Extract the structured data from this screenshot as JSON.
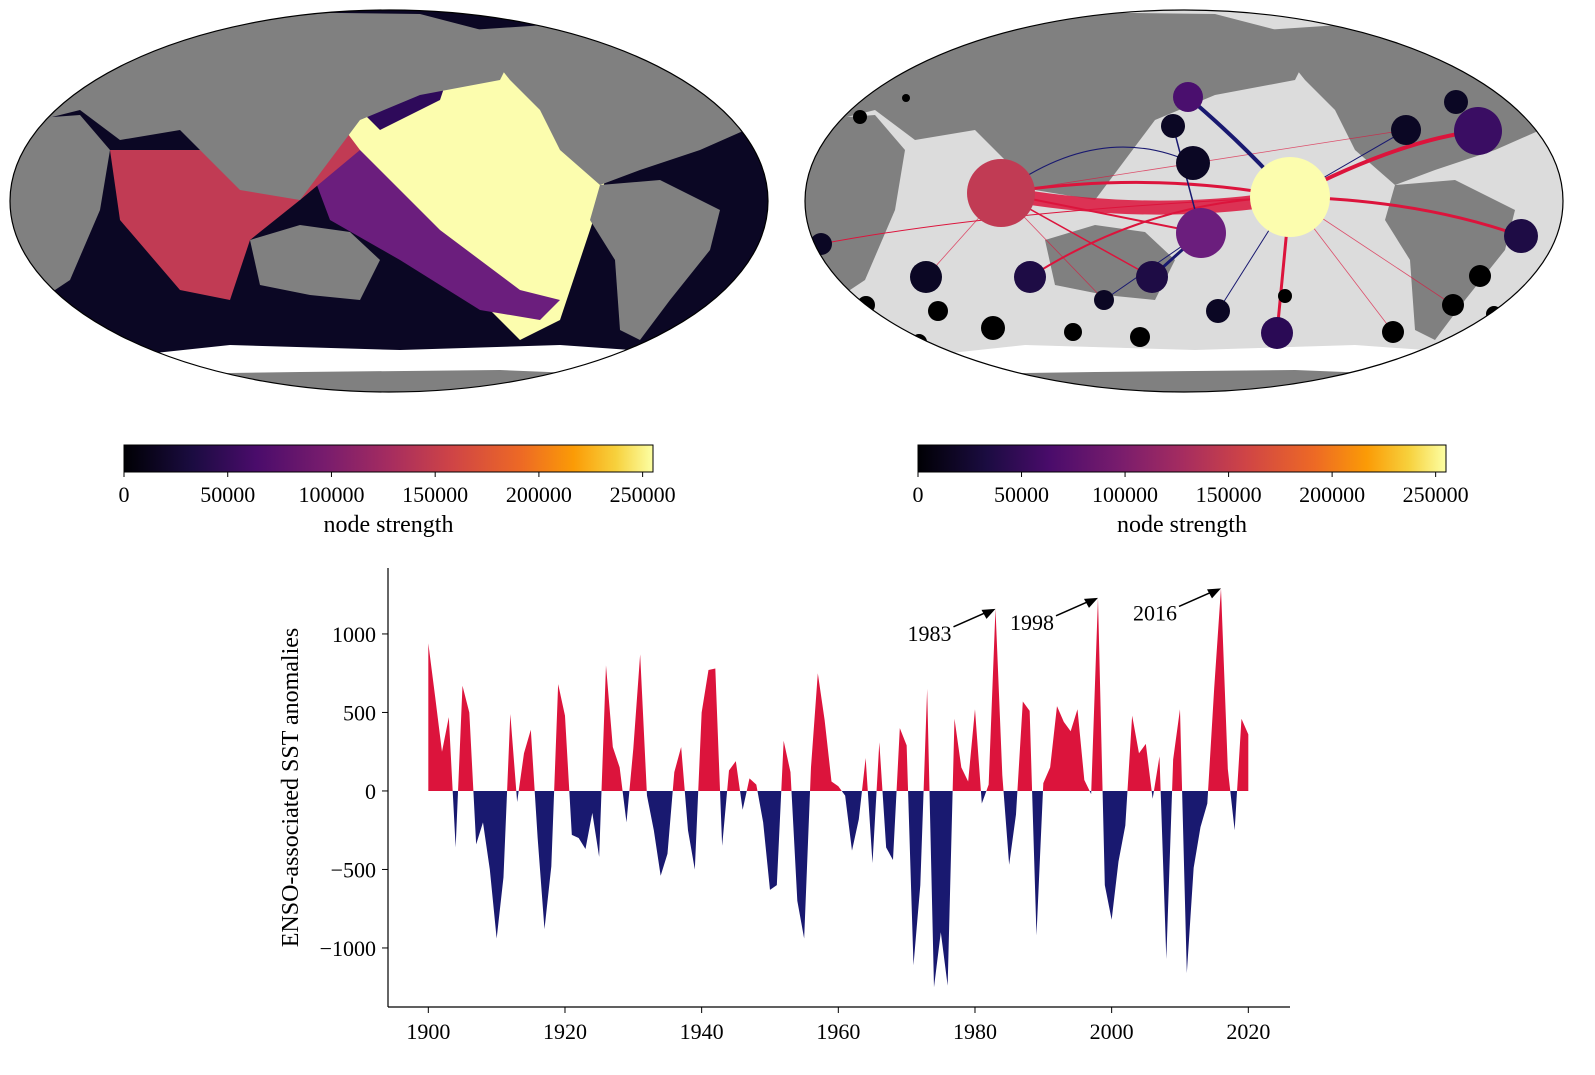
{
  "maps": [
    {
      "colorbar": {
        "label": "node strength",
        "lim": [
          0,
          255000
        ],
        "ticks": [
          0,
          50000,
          100000,
          150000,
          200000,
          250000
        ]
      }
    },
    {
      "colorbar": {
        "label": "node strength",
        "lim": [
          0,
          255000
        ],
        "ticks": [
          0,
          50000,
          100000,
          150000,
          200000,
          250000
        ]
      }
    }
  ],
  "chart_data": {
    "type": "area",
    "ylabel": "ENSO-associated SST anomalies",
    "x": [
      1900,
      1901,
      1902,
      1903,
      1904,
      1905,
      1906,
      1907,
      1908,
      1909,
      1910,
      1911,
      1912,
      1913,
      1914,
      1915,
      1916,
      1917,
      1918,
      1919,
      1920,
      1921,
      1922,
      1923,
      1924,
      1925,
      1926,
      1927,
      1928,
      1929,
      1930,
      1931,
      1932,
      1933,
      1934,
      1935,
      1936,
      1937,
      1938,
      1939,
      1940,
      1941,
      1942,
      1943,
      1944,
      1945,
      1946,
      1947,
      1948,
      1949,
      1950,
      1951,
      1952,
      1953,
      1954,
      1955,
      1956,
      1957,
      1958,
      1959,
      1960,
      1961,
      1962,
      1963,
      1964,
      1965,
      1966,
      1967,
      1968,
      1969,
      1970,
      1971,
      1972,
      1973,
      1974,
      1975,
      1976,
      1977,
      1978,
      1979,
      1980,
      1981,
      1982,
      1983,
      1984,
      1985,
      1986,
      1987,
      1988,
      1989,
      1990,
      1991,
      1992,
      1993,
      1994,
      1995,
      1996,
      1997,
      1998,
      1999,
      2000,
      2001,
      2002,
      2003,
      2004,
      2005,
      2006,
      2007,
      2008,
      2009,
      2010,
      2011,
      2012,
      2013,
      2014,
      2015,
      2016,
      2017,
      2018,
      2019,
      2020
    ],
    "values": [
      940,
      600,
      250,
      470,
      -360,
      670,
      500,
      -340,
      -200,
      -500,
      -940,
      -550,
      490,
      -70,
      240,
      390,
      -300,
      -880,
      -480,
      680,
      480,
      -280,
      -300,
      -370,
      -140,
      -420,
      800,
      280,
      150,
      -200,
      270,
      870,
      -30,
      -250,
      -540,
      -400,
      120,
      280,
      -250,
      -500,
      500,
      770,
      780,
      -350,
      130,
      190,
      -120,
      80,
      40,
      -200,
      -630,
      -600,
      320,
      120,
      -700,
      -940,
      150,
      750,
      450,
      60,
      30,
      -30,
      -380,
      -180,
      210,
      -460,
      310,
      -360,
      -440,
      400,
      290,
      -1110,
      -600,
      650,
      -1250,
      -900,
      -1240,
      460,
      150,
      60,
      520,
      -80,
      40,
      1160,
      100,
      -470,
      -150,
      570,
      510,
      -920,
      50,
      150,
      540,
      440,
      380,
      520,
      70,
      -20,
      1230,
      -600,
      -820,
      -450,
      -220,
      480,
      240,
      300,
      -50,
      220,
      -1070,
      200,
      520,
      -1160,
      -490,
      -230,
      -80,
      650,
      1290,
      140,
      -250,
      460,
      360
    ],
    "positive_color": "#dc143c",
    "negative_color": "#191970",
    "xlim": [
      1894.1,
      2026.1
    ],
    "ylim": [
      -1376,
      1420
    ],
    "xticks": [
      1900,
      1920,
      1940,
      1960,
      1980,
      2000,
      2020
    ],
    "yticks": [
      {
        "value": -1000,
        "label": "−1000"
      },
      {
        "value": -500,
        "label": "−500"
      },
      0,
      500,
      1000
    ],
    "annotations": [
      {
        "text": "1983",
        "x": 1983
      },
      {
        "text": "1998",
        "x": 1998
      },
      {
        "text": "2016",
        "x": 2016
      }
    ]
  }
}
